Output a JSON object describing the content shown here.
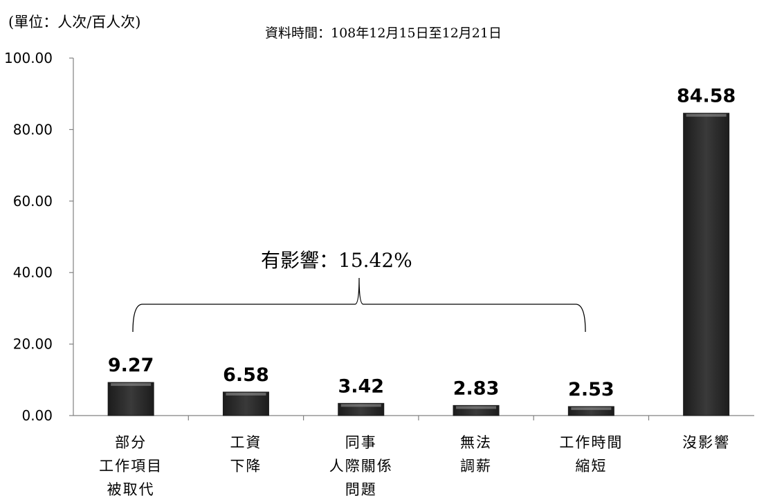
{
  "unit_label": "(單位：人次/百人次)",
  "date_label": "資料時間：108年12月15日至12月21日",
  "annotation": "有影響：15.42%",
  "colors": {
    "bar": "#3a3a3a",
    "bar_dark": "#1c1c1c",
    "bar_highlight": "#9a9a9a",
    "axis": "#808080"
  },
  "chart_data": {
    "type": "bar",
    "title": "",
    "xlabel": "",
    "ylabel": "",
    "ylim": [
      0,
      100
    ],
    "yticks": [
      "0.00",
      "20.00",
      "40.00",
      "60.00",
      "80.00",
      "100.00"
    ],
    "grid": false,
    "categories": [
      [
        "部分",
        "工作項目",
        "被取代"
      ],
      [
        "工資",
        "下降"
      ],
      [
        "同事",
        "人際關係",
        "問題"
      ],
      [
        "無法",
        "調薪"
      ],
      [
        "工作時間",
        "縮短"
      ],
      [
        "沒影響"
      ]
    ],
    "values": [
      9.27,
      6.58,
      3.42,
      2.83,
      2.53,
      84.58
    ],
    "value_labels": [
      "9.27",
      "6.58",
      "3.42",
      "2.83",
      "2.53",
      "84.58"
    ]
  }
}
